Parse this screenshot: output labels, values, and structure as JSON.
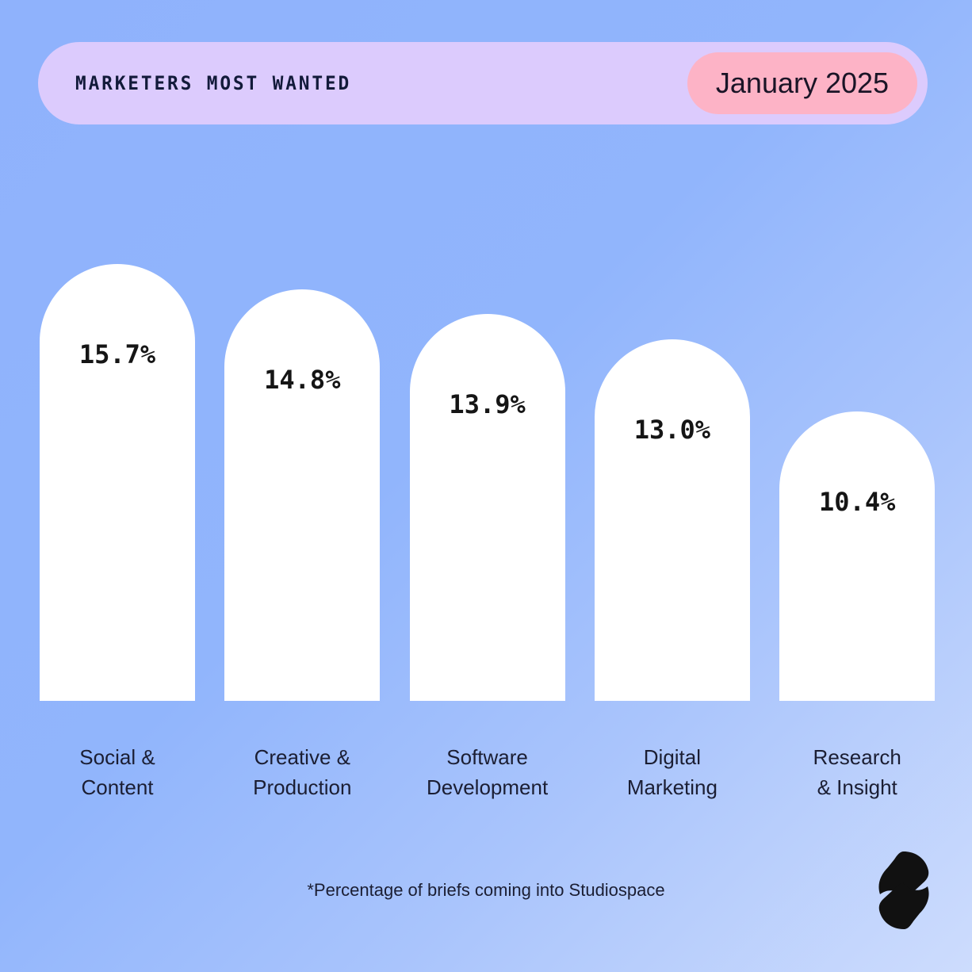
{
  "header": {
    "title": "MARKETERS MOST WANTED",
    "date": "January 2025"
  },
  "chart_data": {
    "type": "bar",
    "categories": [
      [
        "Social &",
        "Content"
      ],
      [
        "Creative &",
        "Production"
      ],
      [
        "Software",
        "Development"
      ],
      [
        "Digital",
        "Marketing"
      ],
      [
        "Research",
        "& Insight"
      ]
    ],
    "values": [
      15.7,
      14.8,
      13.9,
      13.0,
      10.4
    ],
    "value_labels": [
      "15.7%",
      "14.8%",
      "13.9%",
      "13.0%",
      "10.4%"
    ],
    "title": "MARKETERS MOST WANTED",
    "xlabel": "",
    "ylabel": "",
    "ylim": [
      0,
      15.7
    ],
    "colors": {
      "bar": "#ffffff",
      "background": "#91b5fc"
    }
  },
  "footnote": "*Percentage of briefs coming into Studiospace",
  "logo": "Studiospace"
}
